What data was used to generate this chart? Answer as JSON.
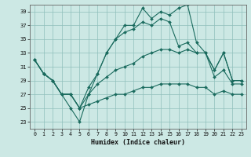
{
  "xlabel": "Humidex (Indice chaleur)",
  "ylabel": "",
  "bg_color": "#cce8e4",
  "grid_color": "#8fbfbb",
  "line_color": "#1a6b5e",
  "xlim": [
    -0.5,
    23.5
  ],
  "ylim": [
    22,
    40
  ],
  "yticks": [
    23,
    25,
    27,
    29,
    31,
    33,
    35,
    37,
    39
  ],
  "xticks": [
    0,
    1,
    2,
    3,
    4,
    5,
    6,
    7,
    8,
    9,
    10,
    11,
    12,
    13,
    14,
    15,
    16,
    17,
    18,
    19,
    20,
    21,
    22,
    23
  ],
  "series_main": [
    32,
    30,
    29,
    27,
    25,
    23,
    27,
    30,
    33,
    35,
    37,
    37,
    39.5,
    38,
    39,
    38.5,
    39.5,
    40,
    34.5,
    33,
    30.5,
    33,
    29,
    29
  ],
  "series_top": [
    32,
    30,
    29,
    27,
    27,
    25,
    28,
    30,
    33,
    35,
    36,
    36.5,
    37.5,
    37,
    38,
    37.5,
    34,
    34.5,
    33,
    33,
    30.5,
    33,
    29,
    29
  ],
  "series_mid": [
    32,
    30,
    29,
    27,
    27,
    25,
    27,
    28.5,
    29.5,
    30.5,
    31,
    31.5,
    32.5,
    33,
    33.5,
    33.5,
    33,
    33.5,
    33,
    33,
    29.5,
    30.5,
    28.5,
    28.5
  ],
  "series_bot": [
    32,
    30,
    29,
    27,
    27,
    25,
    25.5,
    26,
    26.5,
    27,
    27,
    27.5,
    28,
    28,
    28.5,
    28.5,
    28.5,
    28.5,
    28,
    28,
    27,
    27.5,
    27,
    27
  ]
}
